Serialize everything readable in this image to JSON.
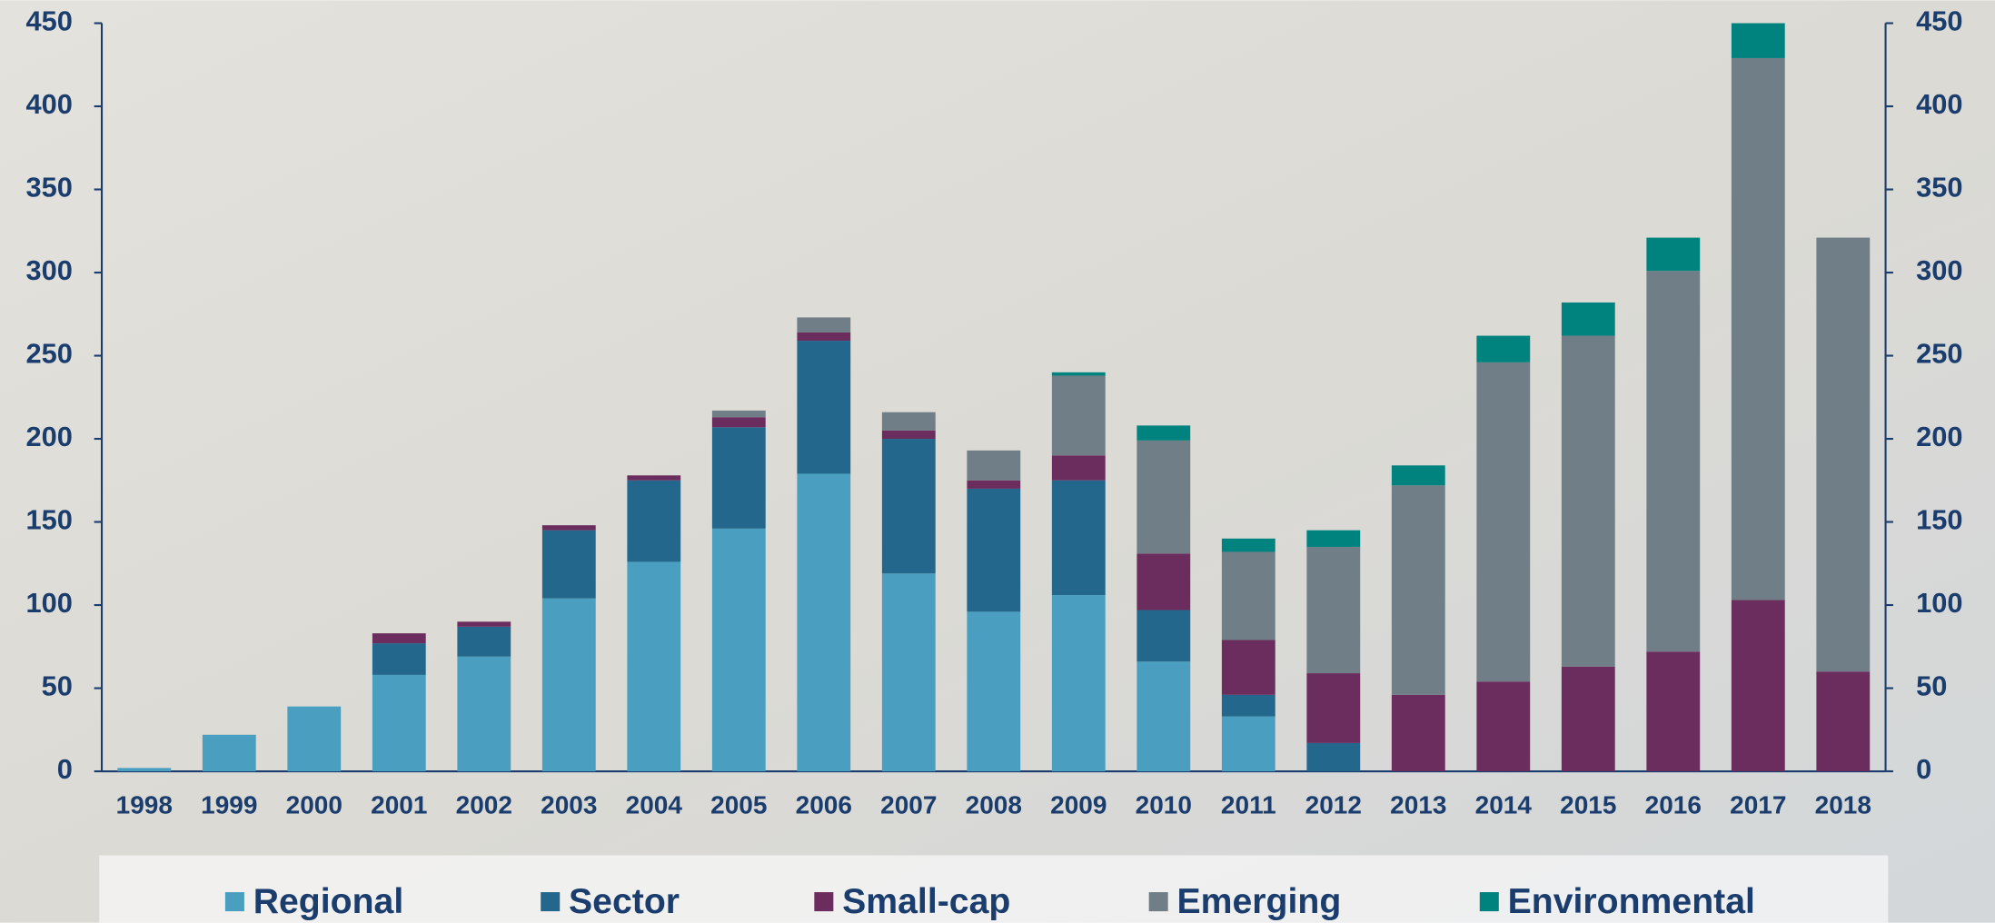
{
  "chart_data": {
    "type": "stacked_bar",
    "categories": [
      "1998",
      "1999",
      "2000",
      "2001",
      "2002",
      "2003",
      "2004",
      "2005",
      "2006",
      "2007",
      "2008",
      "2009",
      "2010",
      "2011",
      "2012",
      "2013",
      "2014",
      "2015",
      "2016",
      "2017",
      "2018"
    ],
    "series": [
      {
        "name": "Regional",
        "color": "#4a9fc0",
        "values": [
          2,
          22,
          39,
          58,
          69,
          104,
          126,
          146,
          179,
          119,
          96,
          106,
          66,
          33,
          0,
          0,
          0,
          0,
          0,
          0,
          0
        ]
      },
      {
        "name": "Sector",
        "color": "#23678c",
        "values": [
          0,
          0,
          0,
          19,
          18,
          41,
          49,
          61,
          80,
          81,
          74,
          69,
          31,
          13,
          17,
          0,
          0,
          0,
          0,
          0,
          0
        ]
      },
      {
        "name": "Small-cap",
        "color": "#6b2d5e",
        "values": [
          0,
          0,
          0,
          6,
          3,
          3,
          3,
          6,
          5,
          5,
          5,
          15,
          34,
          33,
          42,
          46,
          54,
          63,
          72,
          103,
          60
        ]
      },
      {
        "name": "Emerging",
        "color": "#6f7e87",
        "values": [
          0,
          0,
          0,
          0,
          0,
          0,
          0,
          4,
          9,
          11,
          18,
          48,
          68,
          53,
          76,
          126,
          192,
          199,
          229,
          326,
          261
        ]
      },
      {
        "name": "Environmental",
        "color": "#00827f",
        "values": [
          0,
          0,
          0,
          0,
          0,
          0,
          0,
          0,
          0,
          0,
          0,
          2,
          9,
          8,
          10,
          12,
          16,
          20,
          20,
          21,
          0
        ]
      }
    ],
    "ylim": [
      0,
      450
    ],
    "yticks": [
      0,
      50,
      100,
      150,
      200,
      250,
      300,
      350,
      400,
      450
    ],
    "y2lim": [
      0,
      450
    ],
    "y2ticks": [
      0,
      50,
      100,
      150,
      200,
      250,
      300,
      350,
      400,
      450
    ],
    "legend": "bottom"
  }
}
